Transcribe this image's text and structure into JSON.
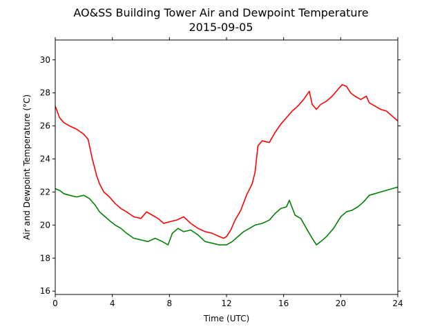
{
  "chart_data": {
    "type": "line",
    "title": "AO&SS Building Tower Air and Dewpoint Temperature",
    "subtitle": "2015-09-05",
    "xlabel": "Time (UTC)",
    "ylabel": "Air and Dewpoint Temperature (°C)",
    "xlim": [
      0,
      24
    ],
    "ylim": [
      15.8,
      31.2
    ],
    "xticks": [
      0,
      4,
      8,
      12,
      16,
      20,
      24
    ],
    "yticks": [
      16,
      18,
      20,
      22,
      24,
      26,
      28,
      30
    ],
    "grid": false,
    "series": [
      {
        "color": "#ff0000",
        "x": [
          0,
          0.3,
          0.6,
          1.0,
          1.5,
          2.0,
          2.3,
          2.6,
          2.9,
          3.1,
          3.4,
          3.8,
          4.2,
          4.6,
          5.0,
          5.5,
          6.0,
          6.4,
          6.8,
          7.2,
          7.6,
          8.0,
          8.5,
          9.0,
          9.5,
          10.0,
          10.5,
          11.0,
          11.5,
          11.8,
          12.0,
          12.3,
          12.6,
          13.0,
          13.4,
          13.8,
          14.0,
          14.2,
          14.5,
          15.0,
          15.4,
          15.8,
          16.2,
          16.6,
          17.0,
          17.4,
          17.8,
          18.0,
          18.3,
          18.6,
          19.0,
          19.4,
          19.8,
          20.1,
          20.4,
          20.7,
          21.0,
          21.4,
          21.8,
          22.0,
          22.4,
          22.8,
          23.2,
          23.6,
          24.0
        ],
        "y": [
          27.2,
          26.5,
          26.2,
          26.0,
          25.8,
          25.5,
          25.2,
          24.0,
          23.0,
          22.5,
          22.0,
          21.7,
          21.3,
          21.0,
          20.8,
          20.5,
          20.4,
          20.8,
          20.6,
          20.4,
          20.1,
          20.2,
          20.3,
          20.5,
          20.1,
          19.8,
          19.6,
          19.5,
          19.3,
          19.2,
          19.3,
          19.7,
          20.3,
          20.9,
          21.8,
          22.5,
          23.2,
          24.8,
          25.1,
          25.0,
          25.6,
          26.1,
          26.5,
          26.9,
          27.2,
          27.6,
          28.1,
          27.3,
          27.0,
          27.3,
          27.5,
          27.8,
          28.2,
          28.5,
          28.4,
          28.0,
          27.8,
          27.6,
          27.8,
          27.4,
          27.2,
          27.0,
          26.9,
          26.6,
          26.3
        ]
      },
      {
        "color": "#008000",
        "x": [
          0,
          0.3,
          0.6,
          1.0,
          1.5,
          2.0,
          2.4,
          2.8,
          3.1,
          3.5,
          3.9,
          4.2,
          4.6,
          5.0,
          5.5,
          6.0,
          6.5,
          7.0,
          7.5,
          7.9,
          8.2,
          8.6,
          9.0,
          9.5,
          10.0,
          10.5,
          11.0,
          11.5,
          12.0,
          12.4,
          12.8,
          13.2,
          13.6,
          14.0,
          14.5,
          15.0,
          15.4,
          15.8,
          16.2,
          16.4,
          16.8,
          17.2,
          17.6,
          18.0,
          18.3,
          18.6,
          19.0,
          19.5,
          20.0,
          20.4,
          20.8,
          21.2,
          21.6,
          22.0,
          22.4,
          22.8,
          23.2,
          23.6,
          24.0
        ],
        "y": [
          22.2,
          22.1,
          21.9,
          21.8,
          21.7,
          21.8,
          21.6,
          21.2,
          20.8,
          20.5,
          20.2,
          20.0,
          19.8,
          19.5,
          19.2,
          19.1,
          19.0,
          19.2,
          19.0,
          18.8,
          19.5,
          19.8,
          19.6,
          19.7,
          19.4,
          19.0,
          18.9,
          18.8,
          18.8,
          19.0,
          19.3,
          19.6,
          19.8,
          20.0,
          20.1,
          20.3,
          20.7,
          21.0,
          21.1,
          21.5,
          20.6,
          20.4,
          19.8,
          19.2,
          18.8,
          19.0,
          19.3,
          19.8,
          20.5,
          20.8,
          20.9,
          21.1,
          21.4,
          21.8,
          21.9,
          22.0,
          22.1,
          22.2,
          22.3
        ]
      }
    ]
  }
}
